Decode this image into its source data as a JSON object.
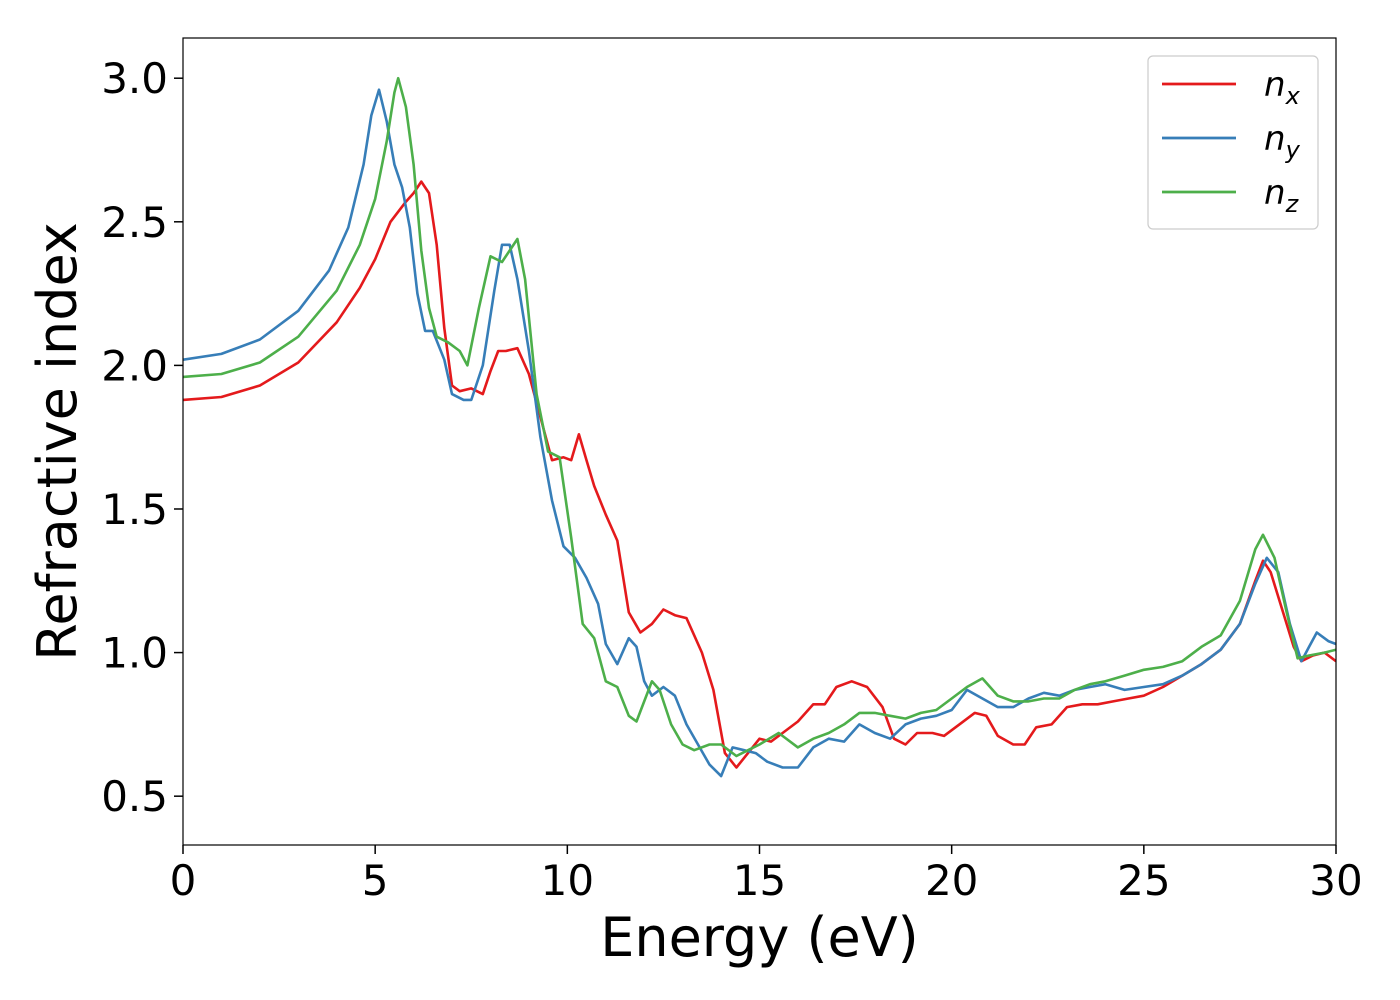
{
  "chart_data": {
    "type": "line",
    "title": "",
    "xlabel": "Energy (eV)",
    "ylabel": "Refractive index",
    "xlim": [
      0,
      30
    ],
    "ylim": [
      0.33,
      3.14
    ],
    "xticks": [
      0,
      5,
      10,
      15,
      20,
      25,
      30
    ],
    "yticks": [
      0.5,
      1.0,
      1.5,
      2.0,
      2.5,
      3.0
    ],
    "xtick_labels": [
      "0",
      "5",
      "10",
      "15",
      "20",
      "25",
      "30"
    ],
    "ytick_labels": [
      "0.5",
      "1.0",
      "1.5",
      "2.0",
      "2.5",
      "3.0"
    ],
    "grid": false,
    "legend_position": "top-right",
    "series": [
      {
        "name": "n_x",
        "name_base": "n",
        "name_sub": "x",
        "color": "#e41a1c",
        "points": [
          [
            0,
            1.88
          ],
          [
            1,
            1.89
          ],
          [
            2,
            1.93
          ],
          [
            3,
            2.01
          ],
          [
            4,
            2.15
          ],
          [
            4.6,
            2.27
          ],
          [
            5,
            2.37
          ],
          [
            5.4,
            2.5
          ],
          [
            5.8,
            2.57
          ],
          [
            6.0,
            2.6
          ],
          [
            6.2,
            2.64
          ],
          [
            6.4,
            2.6
          ],
          [
            6.6,
            2.42
          ],
          [
            6.8,
            2.13
          ],
          [
            7.0,
            1.93
          ],
          [
            7.2,
            1.91
          ],
          [
            7.5,
            1.92
          ],
          [
            7.8,
            1.9
          ],
          [
            8.0,
            1.98
          ],
          [
            8.2,
            2.05
          ],
          [
            8.4,
            2.05
          ],
          [
            8.7,
            2.06
          ],
          [
            9.0,
            1.97
          ],
          [
            9.3,
            1.82
          ],
          [
            9.6,
            1.67
          ],
          [
            9.9,
            1.68
          ],
          [
            10.1,
            1.67
          ],
          [
            10.3,
            1.76
          ],
          [
            10.5,
            1.67
          ],
          [
            10.7,
            1.58
          ],
          [
            11.0,
            1.48
          ],
          [
            11.3,
            1.39
          ],
          [
            11.6,
            1.14
          ],
          [
            11.9,
            1.07
          ],
          [
            12.2,
            1.1
          ],
          [
            12.5,
            1.15
          ],
          [
            12.8,
            1.13
          ],
          [
            13.1,
            1.12
          ],
          [
            13.5,
            1.0
          ],
          [
            13.8,
            0.87
          ],
          [
            14.1,
            0.65
          ],
          [
            14.4,
            0.6
          ],
          [
            14.7,
            0.65
          ],
          [
            15.0,
            0.7
          ],
          [
            15.3,
            0.69
          ],
          [
            15.6,
            0.72
          ],
          [
            16.0,
            0.76
          ],
          [
            16.4,
            0.82
          ],
          [
            16.7,
            0.82
          ],
          [
            17.0,
            0.88
          ],
          [
            17.4,
            0.9
          ],
          [
            17.8,
            0.88
          ],
          [
            18.2,
            0.81
          ],
          [
            18.5,
            0.7
          ],
          [
            18.8,
            0.68
          ],
          [
            19.1,
            0.72
          ],
          [
            19.5,
            0.72
          ],
          [
            19.8,
            0.71
          ],
          [
            20.2,
            0.75
          ],
          [
            20.6,
            0.79
          ],
          [
            20.9,
            0.78
          ],
          [
            21.2,
            0.71
          ],
          [
            21.6,
            0.68
          ],
          [
            21.9,
            0.68
          ],
          [
            22.2,
            0.74
          ],
          [
            22.6,
            0.75
          ],
          [
            23.0,
            0.81
          ],
          [
            23.4,
            0.82
          ],
          [
            23.8,
            0.82
          ],
          [
            24.2,
            0.83
          ],
          [
            24.6,
            0.84
          ],
          [
            25.0,
            0.85
          ],
          [
            25.5,
            0.88
          ],
          [
            26.0,
            0.92
          ],
          [
            26.5,
            0.96
          ],
          [
            27.0,
            1.01
          ],
          [
            27.5,
            1.1
          ],
          [
            27.9,
            1.25
          ],
          [
            28.1,
            1.32
          ],
          [
            28.3,
            1.28
          ],
          [
            28.6,
            1.15
          ],
          [
            28.9,
            1.02
          ],
          [
            29.1,
            0.97
          ],
          [
            29.4,
            0.99
          ],
          [
            29.7,
            1.0
          ],
          [
            30.0,
            0.97
          ]
        ]
      },
      {
        "name": "n_y",
        "name_base": "n",
        "name_sub": "y",
        "color": "#377eb8",
        "points": [
          [
            0,
            2.02
          ],
          [
            1,
            2.04
          ],
          [
            2,
            2.09
          ],
          [
            3,
            2.19
          ],
          [
            3.8,
            2.33
          ],
          [
            4.3,
            2.48
          ],
          [
            4.7,
            2.7
          ],
          [
            4.9,
            2.87
          ],
          [
            5.1,
            2.96
          ],
          [
            5.3,
            2.85
          ],
          [
            5.5,
            2.7
          ],
          [
            5.7,
            2.62
          ],
          [
            5.9,
            2.48
          ],
          [
            6.1,
            2.25
          ],
          [
            6.3,
            2.12
          ],
          [
            6.5,
            2.12
          ],
          [
            6.8,
            2.02
          ],
          [
            7.0,
            1.9
          ],
          [
            7.3,
            1.88
          ],
          [
            7.5,
            1.88
          ],
          [
            7.8,
            2.0
          ],
          [
            8.1,
            2.26
          ],
          [
            8.3,
            2.42
          ],
          [
            8.5,
            2.42
          ],
          [
            8.7,
            2.3
          ],
          [
            9.0,
            2.05
          ],
          [
            9.3,
            1.75
          ],
          [
            9.6,
            1.53
          ],
          [
            9.9,
            1.37
          ],
          [
            10.2,
            1.33
          ],
          [
            10.5,
            1.26
          ],
          [
            10.8,
            1.17
          ],
          [
            11.0,
            1.03
          ],
          [
            11.3,
            0.96
          ],
          [
            11.6,
            1.05
          ],
          [
            11.8,
            1.02
          ],
          [
            12.0,
            0.9
          ],
          [
            12.2,
            0.85
          ],
          [
            12.5,
            0.88
          ],
          [
            12.8,
            0.85
          ],
          [
            13.1,
            0.75
          ],
          [
            13.4,
            0.68
          ],
          [
            13.7,
            0.61
          ],
          [
            14.0,
            0.57
          ],
          [
            14.3,
            0.67
          ],
          [
            14.6,
            0.66
          ],
          [
            14.9,
            0.65
          ],
          [
            15.2,
            0.62
          ],
          [
            15.6,
            0.6
          ],
          [
            16.0,
            0.6
          ],
          [
            16.4,
            0.67
          ],
          [
            16.8,
            0.7
          ],
          [
            17.2,
            0.69
          ],
          [
            17.6,
            0.75
          ],
          [
            18.0,
            0.72
          ],
          [
            18.4,
            0.7
          ],
          [
            18.8,
            0.75
          ],
          [
            19.2,
            0.77
          ],
          [
            19.6,
            0.78
          ],
          [
            20.0,
            0.8
          ],
          [
            20.4,
            0.87
          ],
          [
            20.8,
            0.84
          ],
          [
            21.2,
            0.81
          ],
          [
            21.6,
            0.81
          ],
          [
            22.0,
            0.84
          ],
          [
            22.4,
            0.86
          ],
          [
            22.8,
            0.85
          ],
          [
            23.2,
            0.87
          ],
          [
            23.6,
            0.88
          ],
          [
            24.0,
            0.89
          ],
          [
            24.5,
            0.87
          ],
          [
            25.0,
            0.88
          ],
          [
            25.5,
            0.89
          ],
          [
            26.0,
            0.92
          ],
          [
            26.5,
            0.96
          ],
          [
            27.0,
            1.01
          ],
          [
            27.5,
            1.1
          ],
          [
            27.9,
            1.24
          ],
          [
            28.2,
            1.33
          ],
          [
            28.5,
            1.28
          ],
          [
            28.8,
            1.1
          ],
          [
            29.1,
            0.97
          ],
          [
            29.3,
            1.02
          ],
          [
            29.5,
            1.07
          ],
          [
            29.8,
            1.04
          ],
          [
            30.0,
            1.03
          ]
        ]
      },
      {
        "name": "n_z",
        "name_base": "n",
        "name_sub": "z",
        "color": "#4daf4a",
        "points": [
          [
            0,
            1.96
          ],
          [
            1,
            1.97
          ],
          [
            2,
            2.01
          ],
          [
            3,
            2.1
          ],
          [
            4,
            2.26
          ],
          [
            4.6,
            2.42
          ],
          [
            5.0,
            2.58
          ],
          [
            5.3,
            2.78
          ],
          [
            5.5,
            2.95
          ],
          [
            5.6,
            3.0
          ],
          [
            5.8,
            2.9
          ],
          [
            6.0,
            2.7
          ],
          [
            6.2,
            2.4
          ],
          [
            6.4,
            2.2
          ],
          [
            6.6,
            2.1
          ],
          [
            6.9,
            2.08
          ],
          [
            7.2,
            2.05
          ],
          [
            7.4,
            2.0
          ],
          [
            7.7,
            2.2
          ],
          [
            8.0,
            2.38
          ],
          [
            8.3,
            2.36
          ],
          [
            8.5,
            2.4
          ],
          [
            8.7,
            2.44
          ],
          [
            8.9,
            2.3
          ],
          [
            9.2,
            1.9
          ],
          [
            9.5,
            1.7
          ],
          [
            9.8,
            1.68
          ],
          [
            10.1,
            1.4
          ],
          [
            10.4,
            1.1
          ],
          [
            10.7,
            1.05
          ],
          [
            11.0,
            0.9
          ],
          [
            11.3,
            0.88
          ],
          [
            11.6,
            0.78
          ],
          [
            11.8,
            0.76
          ],
          [
            12.0,
            0.83
          ],
          [
            12.2,
            0.9
          ],
          [
            12.4,
            0.87
          ],
          [
            12.7,
            0.75
          ],
          [
            13.0,
            0.68
          ],
          [
            13.3,
            0.66
          ],
          [
            13.7,
            0.68
          ],
          [
            14.0,
            0.68
          ],
          [
            14.4,
            0.64
          ],
          [
            14.7,
            0.66
          ],
          [
            15.0,
            0.68
          ],
          [
            15.5,
            0.72
          ],
          [
            16.0,
            0.67
          ],
          [
            16.4,
            0.7
          ],
          [
            16.8,
            0.72
          ],
          [
            17.2,
            0.75
          ],
          [
            17.6,
            0.79
          ],
          [
            18.0,
            0.79
          ],
          [
            18.4,
            0.78
          ],
          [
            18.8,
            0.77
          ],
          [
            19.2,
            0.79
          ],
          [
            19.6,
            0.8
          ],
          [
            20.0,
            0.84
          ],
          [
            20.4,
            0.88
          ],
          [
            20.8,
            0.91
          ],
          [
            21.2,
            0.85
          ],
          [
            21.6,
            0.83
          ],
          [
            22.0,
            0.83
          ],
          [
            22.4,
            0.84
          ],
          [
            22.8,
            0.84
          ],
          [
            23.2,
            0.87
          ],
          [
            23.6,
            0.89
          ],
          [
            24.0,
            0.9
          ],
          [
            24.5,
            0.92
          ],
          [
            25.0,
            0.94
          ],
          [
            25.5,
            0.95
          ],
          [
            26.0,
            0.97
          ],
          [
            26.5,
            1.02
          ],
          [
            27.0,
            1.06
          ],
          [
            27.5,
            1.18
          ],
          [
            27.9,
            1.36
          ],
          [
            28.1,
            1.41
          ],
          [
            28.4,
            1.33
          ],
          [
            28.7,
            1.15
          ],
          [
            29.0,
            0.98
          ],
          [
            29.3,
            0.99
          ],
          [
            29.7,
            1.0
          ],
          [
            30.0,
            1.01
          ]
        ]
      }
    ]
  }
}
